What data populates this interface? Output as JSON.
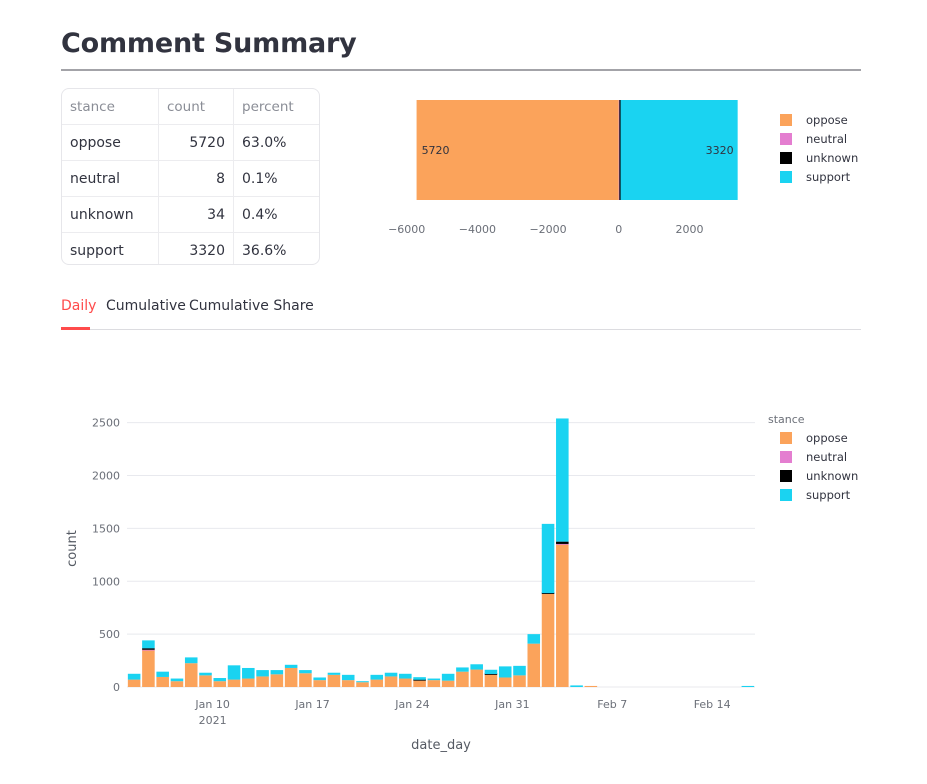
{
  "page": {
    "title": "Comment Summary"
  },
  "summary_table": {
    "headers": [
      "stance",
      "count",
      "percent"
    ],
    "rows": [
      {
        "stance": "oppose",
        "count": "5720",
        "percent": "63.0%"
      },
      {
        "stance": "neutral",
        "count": "8",
        "percent": "0.1%"
      },
      {
        "stance": "unknown",
        "count": "34",
        "percent": "0.4%"
      },
      {
        "stance": "support",
        "count": "3320",
        "percent": "36.6%"
      }
    ]
  },
  "colors": {
    "oppose": "#fba35b",
    "neutral": "#e47ed0",
    "unknown": "#000000",
    "support": "#1ad3f1",
    "accent": "#ff4b4b"
  },
  "tabs": {
    "items": [
      "Daily",
      "Cumulative",
      "Cumulative Share"
    ],
    "active": "Daily"
  },
  "chart_data": [
    {
      "type": "bar",
      "orientation": "horizontal-diverging",
      "series": [
        {
          "name": "oppose",
          "values": [
            -5720
          ]
        },
        {
          "name": "neutral",
          "values": [
            8
          ]
        },
        {
          "name": "unknown",
          "values": [
            34
          ]
        },
        {
          "name": "support",
          "values": [
            3320
          ]
        }
      ],
      "data_labels": [
        "5720",
        "3320"
      ],
      "xlim": [
        -6500,
        3400
      ],
      "x_ticks": [
        "−6000",
        "−4000",
        "−2000",
        "0",
        "2000"
      ],
      "x_tick_values": [
        -6000,
        -4000,
        -2000,
        0,
        2000
      ],
      "legend": {
        "position": "right",
        "entries": [
          "oppose",
          "neutral",
          "unknown",
          "support"
        ]
      },
      "grid": false
    },
    {
      "type": "bar",
      "stacked": true,
      "xlabel": "date_day",
      "ylabel": "count",
      "ylim": [
        0,
        2620
      ],
      "x_ticks": [
        {
          "label": "Jan 10",
          "date": "2021-01-10",
          "sub": "2021"
        },
        {
          "label": "Jan 17",
          "date": "2021-01-17"
        },
        {
          "label": "Jan 24",
          "date": "2021-01-24"
        },
        {
          "label": "Jan 31",
          "date": "2021-01-31"
        },
        {
          "label": "Feb 7",
          "date": "2021-02-07"
        },
        {
          "label": "Feb 14",
          "date": "2021-02-14"
        }
      ],
      "y_ticks": [
        0,
        500,
        1000,
        1500,
        2000,
        2500
      ],
      "grid": true,
      "legend": {
        "title": "stance",
        "position": "top-right",
        "entries": [
          "oppose",
          "neutral",
          "unknown",
          "support"
        ]
      },
      "dates": [
        "2021-01-04",
        "2021-01-05",
        "2021-01-06",
        "2021-01-07",
        "2021-01-08",
        "2021-01-09",
        "2021-01-10",
        "2021-01-11",
        "2021-01-12",
        "2021-01-13",
        "2021-01-14",
        "2021-01-15",
        "2021-01-16",
        "2021-01-17",
        "2021-01-18",
        "2021-01-19",
        "2021-01-20",
        "2021-01-21",
        "2021-01-22",
        "2021-01-23",
        "2021-01-24",
        "2021-01-25",
        "2021-01-26",
        "2021-01-27",
        "2021-01-28",
        "2021-01-29",
        "2021-01-30",
        "2021-01-31",
        "2021-02-01",
        "2021-02-02",
        "2021-02-03",
        "2021-02-04",
        "2021-02-05",
        "2021-02-06",
        "2021-02-07",
        "2021-02-08",
        "2021-02-09",
        "2021-02-10",
        "2021-02-11",
        "2021-02-12",
        "2021-02-13",
        "2021-02-14",
        "2021-02-15",
        "2021-02-16"
      ],
      "series": [
        {
          "name": "oppose",
          "values": [
            70,
            350,
            95,
            55,
            225,
            110,
            55,
            70,
            80,
            100,
            120,
            180,
            130,
            65,
            115,
            65,
            45,
            70,
            100,
            80,
            60,
            65,
            60,
            145,
            165,
            115,
            90,
            110,
            410,
            880,
            1350,
            0,
            10,
            0,
            0,
            0,
            0,
            0,
            0,
            0,
            0,
            0,
            0,
            0
          ]
        },
        {
          "name": "neutral",
          "values": [
            0,
            2,
            0,
            0,
            0,
            0,
            0,
            0,
            0,
            0,
            0,
            0,
            0,
            0,
            0,
            0,
            0,
            0,
            0,
            0,
            0,
            0,
            0,
            0,
            0,
            0,
            0,
            0,
            0,
            0,
            3,
            0,
            0,
            0,
            0,
            0,
            0,
            0,
            0,
            0,
            0,
            0,
            0,
            0
          ]
        },
        {
          "name": "unknown",
          "values": [
            0,
            14,
            0,
            0,
            0,
            0,
            0,
            0,
            0,
            0,
            0,
            0,
            0,
            0,
            0,
            0,
            0,
            0,
            0,
            0,
            8,
            0,
            0,
            0,
            0,
            8,
            0,
            0,
            0,
            8,
            22,
            0,
            0,
            0,
            0,
            0,
            0,
            0,
            0,
            0,
            0,
            0,
            0,
            0
          ]
        },
        {
          "name": "support",
          "values": [
            55,
            75,
            50,
            25,
            55,
            25,
            30,
            135,
            100,
            60,
            40,
            30,
            30,
            25,
            20,
            50,
            10,
            45,
            35,
            45,
            25,
            15,
            65,
            40,
            50,
            40,
            105,
            90,
            90,
            655,
            1165,
            15,
            0,
            0,
            0,
            0,
            0,
            0,
            0,
            0,
            0,
            0,
            0,
            10
          ]
        }
      ]
    }
  ]
}
